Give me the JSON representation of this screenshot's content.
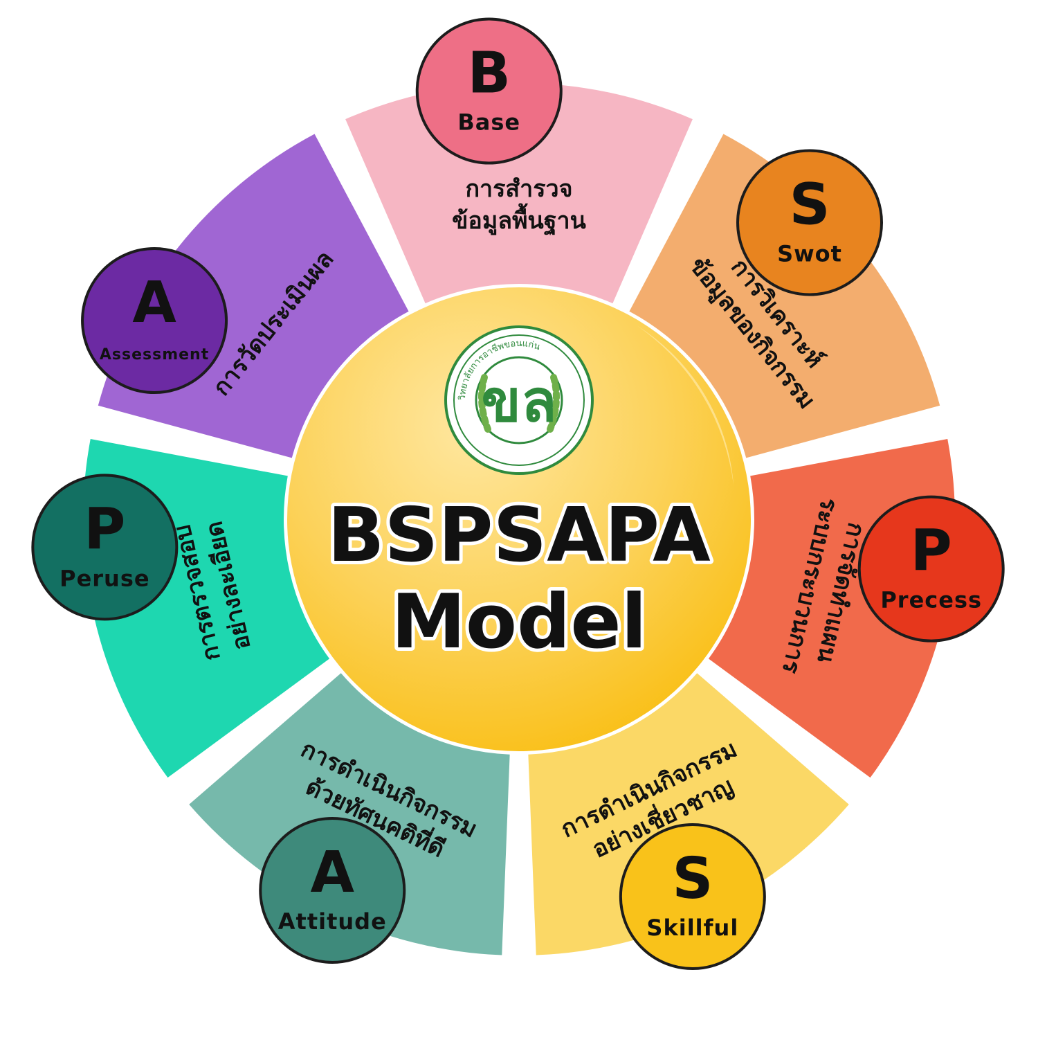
{
  "center": {
    "title_line1": "BSPSAPA",
    "title_line2": "Model",
    "logo": {
      "monogram": "ขล",
      "ring_text": "วิทยาลัยการอาชีพขอนแก่น",
      "icon": "school-seal"
    }
  },
  "segments": [
    {
      "id": "base",
      "letter": "B",
      "word": "Base",
      "thai": [
        "การสำรวจ",
        "ข้อมูลพื้นฐาน"
      ],
      "segment_color": "#f6b6c3",
      "badge_color": "#ee6f86"
    },
    {
      "id": "swot",
      "letter": "S",
      "word": "Swot",
      "thai": [
        "การวิเคราะห์",
        "ข้อมูลของกิจกรรม"
      ],
      "segment_color": "#f3ad6e",
      "badge_color": "#e8841f"
    },
    {
      "id": "precess",
      "letter": "P",
      "word": "Precess",
      "thai": [
        "การจัดทำแผน",
        "ระบบกระบวนการ"
      ],
      "segment_color": "#f16a4b",
      "badge_color": "#e6371c"
    },
    {
      "id": "skillful",
      "letter": "S",
      "word": "Skillful",
      "thai": [
        "การดำเนินกิจกรรม",
        "อย่างเชี่ยวชาญ"
      ],
      "segment_color": "#fbd866",
      "badge_color": "#f9c21a"
    },
    {
      "id": "attitude",
      "letter": "A",
      "word": "Attitude",
      "thai": [
        "การดำเนินกิจกรรม",
        "ด้วยทัศนคติที่ดี"
      ],
      "segment_color": "#76b9ab",
      "badge_color": "#3e8a7b"
    },
    {
      "id": "peruse",
      "letter": "P",
      "word": "Peruse",
      "thai": [
        "การตรวจสอบ",
        "อย่างละเอียด"
      ],
      "segment_color": "#1ed7b0",
      "badge_color": "#137062"
    },
    {
      "id": "assessment",
      "letter": "A",
      "word": "Assessment",
      "thai": [
        "การวัดประเมินผล"
      ],
      "segment_color": "#a066d3",
      "badge_color": "#6c2aa3"
    }
  ]
}
